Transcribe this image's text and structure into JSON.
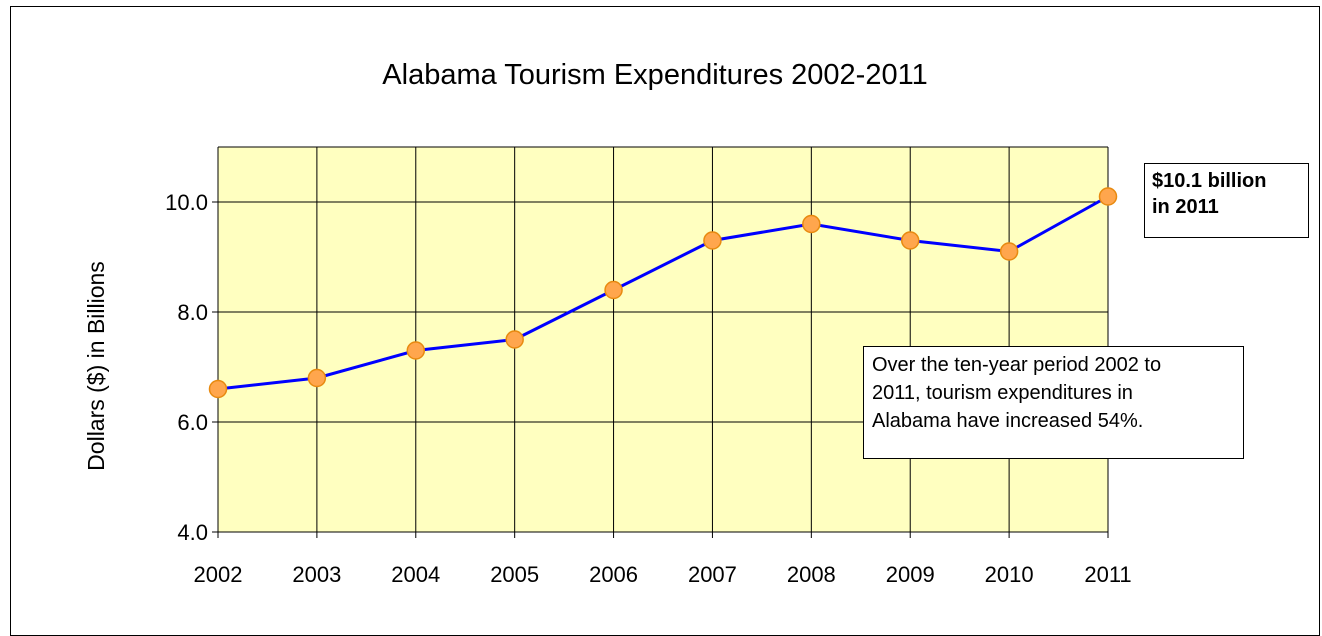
{
  "chart_data": {
    "type": "line",
    "title": "Alabama Tourism Expenditures 2002-2011",
    "ylabel": "Dollars ($) in Billions",
    "xlabel": "",
    "categories": [
      "2002",
      "2003",
      "2004",
      "2005",
      "2006",
      "2007",
      "2008",
      "2009",
      "2010",
      "2011"
    ],
    "series": [
      {
        "values": [
          6.6,
          6.8,
          7.3,
          7.5,
          8.4,
          9.3,
          9.6,
          9.3,
          9.1,
          10.1
        ]
      }
    ],
    "ylim": [
      4.0,
      11.0
    ],
    "yticks": [
      "4.0",
      "6.0",
      "8.0",
      "10.0"
    ],
    "grid": true,
    "colors": {
      "plot_bg": "#ffffc0",
      "line": "#0000ff",
      "marker": "#ffa64d",
      "marker_edge": "#e88a10",
      "grid": "#000000"
    },
    "annotations": {
      "callout_line1": "$10.1 billion",
      "callout_line2": "in 2011",
      "note_line1": "Over the ten-year  period 2002 to",
      "note_line2": "2011, tourism expenditures in",
      "note_line3": "Alabama have increased 54%."
    }
  }
}
